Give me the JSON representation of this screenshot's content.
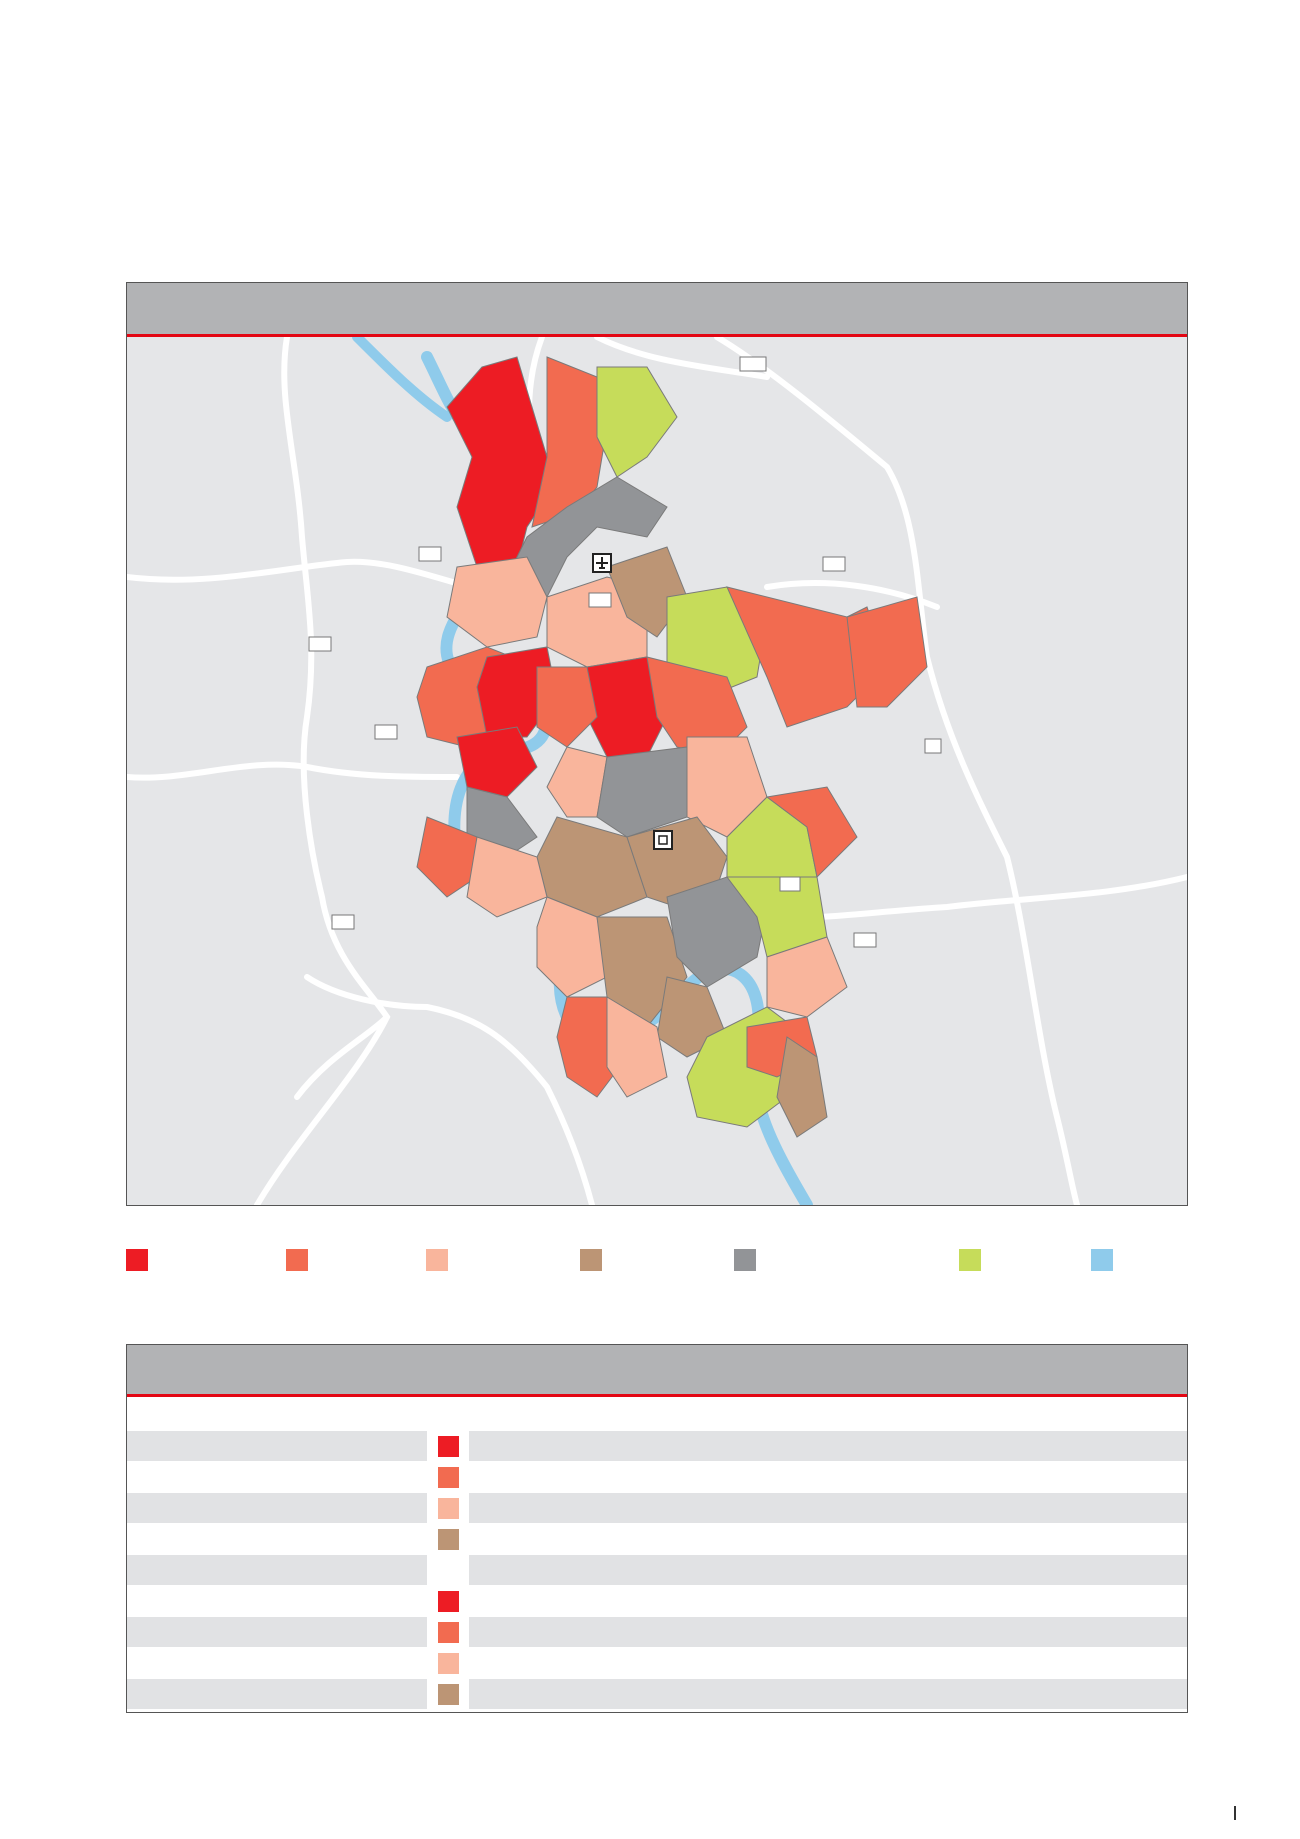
{
  "map": {
    "title": "",
    "road_badges": [
      "",
      "",
      "",
      "",
      "",
      "",
      "",
      "",
      "",
      "",
      ""
    ],
    "icons": [
      "airport-icon",
      "main-station-icon"
    ]
  },
  "legend": [
    {
      "color": "#ed1c24",
      "label": ""
    },
    {
      "color": "#f26b50",
      "label": ""
    },
    {
      "color": "#f9b59c",
      "label": ""
    },
    {
      "color": "#bc9575",
      "label": ""
    },
    {
      "color": "#929497",
      "label": ""
    },
    {
      "color": "#c6dc5a",
      "label": ""
    },
    {
      "color": "#8fcbeb",
      "label": ""
    }
  ],
  "table": {
    "title": "",
    "rows": [
      {
        "label": "",
        "color": "",
        "text": ""
      },
      {
        "label": "",
        "color": "#ed1c24",
        "text": ""
      },
      {
        "label": "",
        "color": "#f26b50",
        "text": ""
      },
      {
        "label": "",
        "color": "#f9b59c",
        "text": ""
      },
      {
        "label": "",
        "color": "#bc9575",
        "text": ""
      },
      {
        "label": "",
        "color": "",
        "text": ""
      },
      {
        "label": "",
        "color": "#ed1c24",
        "text": ""
      },
      {
        "label": "",
        "color": "#f26b50",
        "text": ""
      },
      {
        "label": "",
        "color": "#f9b59c",
        "text": ""
      },
      {
        "label": "",
        "color": "#bc9575",
        "text": ""
      }
    ]
  }
}
